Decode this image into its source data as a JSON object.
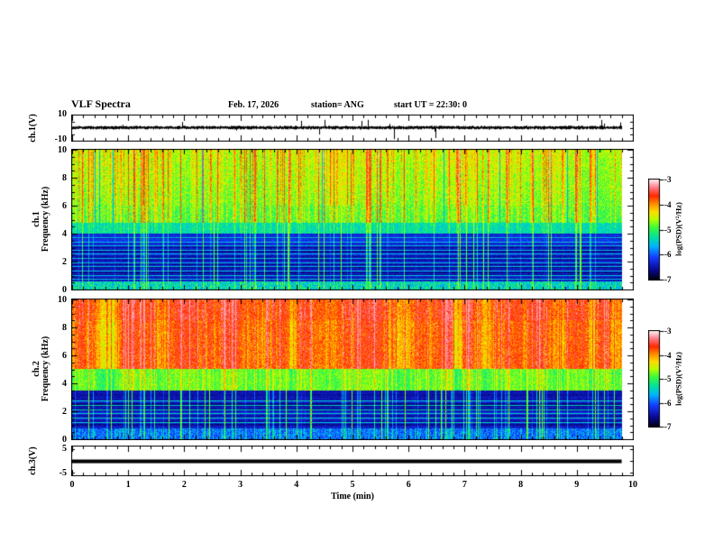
{
  "header": {
    "title": "VLF Spectra",
    "date": "Feb. 17, 2026",
    "station": "station= ANG",
    "start_ut": "start UT =  22:30: 0"
  },
  "time_axis": {
    "label": "Time (min)",
    "ticks": [
      "0",
      "1",
      "2",
      "3",
      "4",
      "5",
      "6",
      "7",
      "8",
      "9",
      "10"
    ],
    "range_min": [
      0,
      10
    ],
    "minor_step_min": 0.2,
    "data_end_min": 9.8
  },
  "panels": {
    "ch1_wave": {
      "ylabel": "ch.1(V)",
      "ymax": "10",
      "ymin": "-10",
      "yrange": [
        -10,
        10
      ]
    },
    "ch1_spec": {
      "label_channel": "ch.1",
      "label_axis": "Frequency (kHz)",
      "yticks": [
        "0",
        "2",
        "4",
        "6",
        "8",
        "10"
      ],
      "yrange_khz": [
        0,
        10
      ]
    },
    "ch2_spec": {
      "label_channel": "ch.2",
      "label_axis": "Frequency (kHz)",
      "yticks": [
        "0",
        "2",
        "4",
        "6",
        "8",
        "10"
      ],
      "yrange_khz": [
        0,
        10
      ]
    },
    "ch3_wave": {
      "ylabel": "ch.3(V)",
      "ymax": "5",
      "ymin": "-5",
      "value_V": 0
    }
  },
  "colorbar": {
    "label": "log(PSD)(V²/Hz)",
    "ticks": [
      "-3",
      "-4",
      "-5",
      "-6",
      "-7"
    ],
    "range": [
      -7,
      -3
    ],
    "colormap_stops": [
      [
        0.0,
        "#000019"
      ],
      [
        0.1,
        "#0a0a96"
      ],
      [
        0.22,
        "#143cff"
      ],
      [
        0.33,
        "#00b4ff"
      ],
      [
        0.42,
        "#00e1a0"
      ],
      [
        0.52,
        "#3cfa3c"
      ],
      [
        0.6,
        "#b4ff00"
      ],
      [
        0.68,
        "#ffdc00"
      ],
      [
        0.76,
        "#ff8c00"
      ],
      [
        0.84,
        "#ff2800"
      ],
      [
        0.92,
        "#ff7882"
      ],
      [
        1.0,
        "#ffebee"
      ]
    ]
  },
  "chart_data": [
    {
      "type": "line",
      "name": "ch1-waveform",
      "ylabel": "ch.1(V)",
      "ylim": [
        -10,
        10
      ],
      "xlim": [
        0,
        10
      ],
      "description": "broadband noise centered near 0 V with impulsive sferic spikes",
      "noise_peak_to_peak_V": 2,
      "spike_min_V": -9,
      "spike_max_V": 6,
      "color": "#000000"
    },
    {
      "type": "heatmap",
      "name": "ch1-spectrogram",
      "ylabel": "ch.1 Frequency (kHz)",
      "ylim": [
        0,
        10
      ],
      "xlim": [
        0,
        9.8
      ],
      "zlabel": "log(PSD)(V²/Hz)",
      "zlim": [
        -7,
        -3
      ],
      "bands": [
        {
          "f_khz": [
            4.8,
            10
          ],
          "psd": -5.0,
          "streak_psd": -3.7,
          "appearance": "green-yellow with red/orange sferic streaks"
        },
        {
          "f_khz": [
            4.0,
            4.8
          ],
          "psd": -5.4,
          "appearance": "cyan-green transition band"
        },
        {
          "f_khz": [
            0.6,
            4.0
          ],
          "psd": -6.5,
          "line_psd": -5.6,
          "appearance": "dark blue/black with cyan harmonic lines"
        },
        {
          "f_khz": [
            0,
            0.6
          ],
          "psd": -5.5,
          "appearance": "cyan speckle band"
        }
      ],
      "harmonic_lines_khz": [
        0.75,
        1.05,
        1.35,
        1.65,
        1.95,
        2.25,
        2.55,
        2.85,
        3.15,
        3.45,
        3.75,
        4.05,
        4.15
      ]
    },
    {
      "type": "heatmap",
      "name": "ch2-spectrogram",
      "ylabel": "ch.2 Frequency (kHz)",
      "ylim": [
        0,
        10
      ],
      "xlim": [
        0,
        9.8
      ],
      "zlabel": "log(PSD)(V²/Hz)",
      "zlim": [
        -7,
        -3
      ],
      "bands": [
        {
          "f_khz": [
            5,
            10
          ],
          "psd": -4.7,
          "streak_psd": -3.3,
          "appearance": "saturated red/orange vertical streak clusters on yellow-green"
        },
        {
          "f_khz": [
            3.5,
            5
          ],
          "psd": -5.2,
          "appearance": "green-cyan transition"
        },
        {
          "f_khz": [
            0.8,
            3.5
          ],
          "psd": -6.5,
          "line_psd": -5.5,
          "appearance": "dark blue/black with green harmonic lines"
        },
        {
          "f_khz": [
            0,
            0.8
          ],
          "psd": -6.0,
          "appearance": "blue speckle with green streaks"
        }
      ],
      "harmonic_lines_khz": [
        1.25,
        1.55,
        1.85,
        2.15,
        2.45,
        2.75
      ]
    },
    {
      "type": "line",
      "name": "ch3-waveform",
      "ylabel": "ch.3(V)",
      "ylim": [
        -5,
        5
      ],
      "xlim": [
        0,
        10
      ],
      "constant_value_V": 0,
      "x_extent_min": [
        0,
        9.8
      ],
      "description": "flat thick black trace at 0 V",
      "color": "#000000"
    }
  ]
}
